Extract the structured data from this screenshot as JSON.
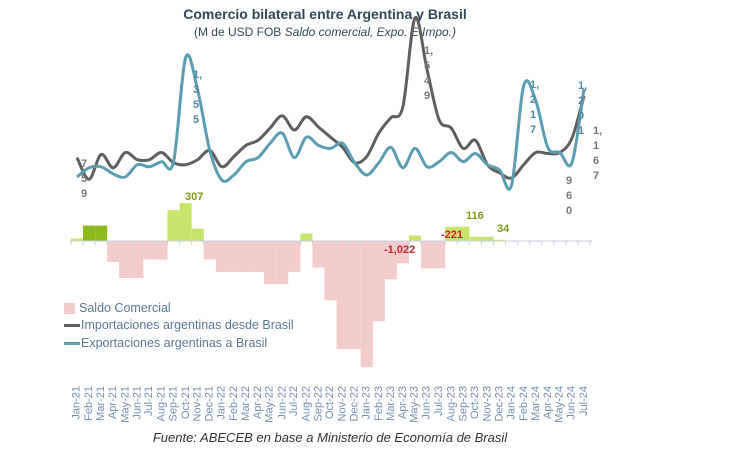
{
  "chart_data": {
    "type": "bar+line",
    "title": "Comercio bilateral entre Argentina y Brasil",
    "subtitle_prefix": "(M de USD FOB ",
    "subtitle_italic": "Saldo comercial, Expo. E Impo.)",
    "categories": [
      "Jan-21",
      "Feb-21",
      "Mar-21",
      "Apr-21",
      "May-21",
      "Jun-21",
      "Jul-21",
      "Aug-21",
      "Sep-21",
      "Oct-21",
      "Nov-21",
      "Dec-21",
      "Jan-22",
      "Feb-22",
      "Mar-22",
      "Apr-22",
      "May-22",
      "Jun-22",
      "Jul-22",
      "Aug-22",
      "Sep-22",
      "Oct-22",
      "Nov-22",
      "Dec-22",
      "Jan-23",
      "Feb-23",
      "Mar-23",
      "Apr-23",
      "May-23",
      "Jun-23",
      "Jul-23",
      "Aug-23",
      "Sep-23",
      "Oct-23",
      "Nov-23",
      "Dec-23",
      "Jan-24",
      "Feb-24",
      "Mar-24",
      "Apr-24",
      "May-24",
      "Jun-24",
      "Jul-24"
    ],
    "series": [
      {
        "name": "Saldo Comercial",
        "kind": "bar",
        "color": "#f4cccc",
        "positive_color": "#c8e56b",
        "highlight_color": "#8dbb1c",
        "values": [
          20,
          125,
          125,
          -170,
          -300,
          -300,
          -150,
          -150,
          250,
          307,
          100,
          -150,
          -250,
          -250,
          -250,
          -250,
          -350,
          -350,
          -250,
          60,
          -215,
          -480,
          -875,
          -875,
          -1022,
          -650,
          -310,
          -180,
          45,
          -221,
          -221,
          116,
          116,
          34,
          34,
          10,
          null,
          null,
          null,
          null,
          null,
          null,
          null
        ]
      },
      {
        "name": "Importaciones argentinas desde Brasil",
        "kind": "line",
        "color": "#5f5f5f",
        "values": [
          865,
          759,
          880,
          815,
          890,
          855,
          855,
          890,
          840,
          830,
          855,
          900,
          820,
          870,
          925,
          950,
          1010,
          1070,
          1000,
          1065,
          1015,
          965,
          915,
          840,
          870,
          985,
          1060,
          1115,
          1549,
          1295,
          1050,
          1010,
          910,
          950,
          830,
          790,
          765,
          830,
          890,
          885,
          890,
          960,
          1167
        ]
      },
      {
        "name": "Exportaciones argentinas a Brasil",
        "kind": "line",
        "color": "#5b9db3",
        "values": [
          770,
          815,
          820,
          785,
          770,
          830,
          820,
          845,
          845,
          1355,
          1195,
          900,
          755,
          780,
          845,
          865,
          935,
          985,
          865,
          965,
          925,
          910,
          935,
          840,
          780,
          840,
          915,
          815,
          910,
          820,
          845,
          890,
          845,
          885,
          830,
          805,
          730,
          1217,
          1145,
          915,
          890,
          840,
          1201
        ]
      }
    ],
    "line_labels": {
      "imp_first": "759",
      "exp_oct21": "1,355",
      "imp_may23": "1,549",
      "exp_feb24": "1,217",
      "imp_jun24": "960",
      "exp_jul24": "1,201",
      "imp_jul24": "1,167"
    },
    "bar_labels": {
      "oct21": "307",
      "jan23": "-1,022",
      "jul23": "-221",
      "sep23": "116",
      "nov23": "34"
    },
    "bar_label_colors": {
      "positive": "#7d9c16",
      "negative": "#c0282d"
    },
    "legend_placement": "bottom-left",
    "grid": false,
    "source": "Fuente: ABECEB en base a Ministerio de Economía de Brasil"
  }
}
